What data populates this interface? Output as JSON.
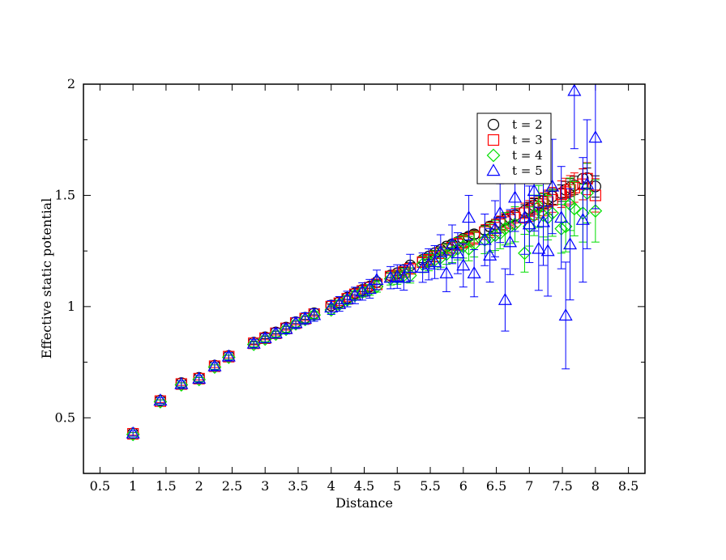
{
  "chart_data": {
    "type": "scatter",
    "title": "",
    "xlabel": "Distance",
    "ylabel": "Effective static potential",
    "xlim": [
      0.25,
      8.75
    ],
    "ylim": [
      0.25,
      2.0
    ],
    "xticks": [
      "0.5",
      "1",
      "1.5",
      "2",
      "2.5",
      "3",
      "3.5",
      "4",
      "4.5",
      "5",
      "5.5",
      "6",
      "6.5",
      "7",
      "7.5",
      "8",
      "8.5"
    ],
    "yticks": [
      "0.5",
      "1",
      "1.5",
      "2"
    ],
    "grid": false,
    "legend_position": "top-right",
    "series": [
      {
        "name": "t = 2",
        "color": "#000000",
        "marker": "circle",
        "points": [
          [
            1.0,
            0.43,
            0.005
          ],
          [
            1.414,
            0.578,
            0.005
          ],
          [
            1.732,
            0.656,
            0.005
          ],
          [
            2.0,
            0.68,
            0.005
          ],
          [
            2.236,
            0.735,
            0.005
          ],
          [
            2.449,
            0.778,
            0.005
          ],
          [
            2.828,
            0.838,
            0.006
          ],
          [
            3.0,
            0.862,
            0.006
          ],
          [
            3.162,
            0.884,
            0.006
          ],
          [
            3.317,
            0.906,
            0.006
          ],
          [
            3.464,
            0.93,
            0.006
          ],
          [
            3.606,
            0.95,
            0.007
          ],
          [
            3.742,
            0.97,
            0.007
          ],
          [
            4.0,
            1.005,
            0.007
          ],
          [
            4.123,
            1.02,
            0.007
          ],
          [
            4.243,
            1.04,
            0.008
          ],
          [
            4.359,
            1.06,
            0.008
          ],
          [
            4.472,
            1.075,
            0.008
          ],
          [
            4.583,
            1.09,
            0.008
          ],
          [
            4.69,
            1.11,
            0.009
          ],
          [
            4.899,
            1.14,
            0.01
          ],
          [
            5.0,
            1.15,
            0.01
          ],
          [
            5.099,
            1.165,
            0.011
          ],
          [
            5.196,
            1.185,
            0.012
          ],
          [
            5.385,
            1.21,
            0.012
          ],
          [
            5.477,
            1.225,
            0.013
          ],
          [
            5.568,
            1.24,
            0.013
          ],
          [
            5.657,
            1.255,
            0.014
          ],
          [
            5.745,
            1.27,
            0.015
          ],
          [
            5.831,
            1.28,
            0.015
          ],
          [
            5.916,
            1.29,
            0.016
          ],
          [
            6.0,
            1.305,
            0.017
          ],
          [
            6.083,
            1.315,
            0.018
          ],
          [
            6.164,
            1.325,
            0.019
          ],
          [
            6.325,
            1.345,
            0.02
          ],
          [
            6.403,
            1.36,
            0.021
          ],
          [
            6.481,
            1.37,
            0.022
          ],
          [
            6.557,
            1.38,
            0.023
          ],
          [
            6.633,
            1.39,
            0.024
          ],
          [
            6.708,
            1.4,
            0.025
          ],
          [
            6.782,
            1.41,
            0.026
          ],
          [
            6.928,
            1.43,
            0.028
          ],
          [
            7.0,
            1.44,
            0.029
          ],
          [
            7.071,
            1.455,
            0.03
          ],
          [
            7.141,
            1.465,
            0.032
          ],
          [
            7.211,
            1.475,
            0.033
          ],
          [
            7.28,
            1.485,
            0.034
          ],
          [
            7.348,
            1.495,
            0.035
          ],
          [
            7.483,
            1.51,
            0.037
          ],
          [
            7.55,
            1.525,
            0.038
          ],
          [
            7.616,
            1.535,
            0.04
          ],
          [
            7.681,
            1.545,
            0.041
          ],
          [
            7.81,
            1.575,
            0.044
          ],
          [
            7.874,
            1.578,
            0.045
          ],
          [
            8.0,
            1.54,
            0.048
          ]
        ]
      },
      {
        "name": "t = 3",
        "color": "#ff0000",
        "marker": "square",
        "points": [
          [
            1.0,
            0.428,
            0.006
          ],
          [
            1.414,
            0.575,
            0.006
          ],
          [
            1.732,
            0.652,
            0.006
          ],
          [
            2.0,
            0.676,
            0.006
          ],
          [
            2.236,
            0.732,
            0.006
          ],
          [
            2.449,
            0.775,
            0.006
          ],
          [
            2.828,
            0.835,
            0.007
          ],
          [
            3.0,
            0.858,
            0.007
          ],
          [
            3.162,
            0.88,
            0.008
          ],
          [
            3.317,
            0.902,
            0.008
          ],
          [
            3.464,
            0.926,
            0.008
          ],
          [
            3.606,
            0.946,
            0.009
          ],
          [
            3.742,
            0.966,
            0.009
          ],
          [
            4.0,
            1.0,
            0.01
          ],
          [
            4.123,
            1.015,
            0.01
          ],
          [
            4.243,
            1.035,
            0.011
          ],
          [
            4.359,
            1.055,
            0.012
          ],
          [
            4.472,
            1.07,
            0.012
          ],
          [
            4.583,
            1.085,
            0.013
          ],
          [
            4.69,
            1.1,
            0.014
          ],
          [
            4.899,
            1.135,
            0.015
          ],
          [
            5.0,
            1.14,
            0.016
          ],
          [
            5.099,
            1.155,
            0.017
          ],
          [
            5.196,
            1.17,
            0.018
          ],
          [
            5.385,
            1.2,
            0.02
          ],
          [
            5.477,
            1.21,
            0.021
          ],
          [
            5.568,
            1.225,
            0.022
          ],
          [
            5.657,
            1.24,
            0.023
          ],
          [
            5.745,
            1.255,
            0.024
          ],
          [
            5.831,
            1.265,
            0.025
          ],
          [
            5.916,
            1.28,
            0.027
          ],
          [
            6.0,
            1.29,
            0.028
          ],
          [
            6.083,
            1.3,
            0.029
          ],
          [
            6.164,
            1.31,
            0.03
          ],
          [
            6.325,
            1.335,
            0.033
          ],
          [
            6.403,
            1.345,
            0.034
          ],
          [
            6.481,
            1.355,
            0.036
          ],
          [
            6.557,
            1.37,
            0.037
          ],
          [
            6.633,
            1.38,
            0.038
          ],
          [
            6.708,
            1.39,
            0.04
          ],
          [
            6.782,
            1.4,
            0.042
          ],
          [
            6.928,
            1.42,
            0.045
          ],
          [
            7.0,
            1.43,
            0.047
          ],
          [
            7.071,
            1.44,
            0.049
          ],
          [
            7.141,
            1.45,
            0.05
          ],
          [
            7.211,
            1.46,
            0.052
          ],
          [
            7.28,
            1.47,
            0.054
          ],
          [
            7.348,
            1.48,
            0.056
          ],
          [
            7.483,
            1.505,
            0.06
          ],
          [
            7.55,
            1.515,
            0.062
          ],
          [
            7.616,
            1.525,
            0.064
          ],
          [
            7.681,
            1.535,
            0.066
          ],
          [
            7.81,
            1.55,
            0.07
          ],
          [
            7.874,
            1.575,
            0.072
          ],
          [
            8.0,
            1.5,
            0.075
          ]
        ]
      },
      {
        "name": "t = 4",
        "color": "#00dd00",
        "marker": "diamond",
        "points": [
          [
            1.0,
            0.425,
            0.008
          ],
          [
            1.414,
            0.572,
            0.008
          ],
          [
            1.732,
            0.648,
            0.009
          ],
          [
            2.0,
            0.672,
            0.009
          ],
          [
            2.236,
            0.728,
            0.01
          ],
          [
            2.449,
            0.772,
            0.01
          ],
          [
            2.828,
            0.83,
            0.011
          ],
          [
            3.0,
            0.854,
            0.012
          ],
          [
            3.162,
            0.876,
            0.012
          ],
          [
            3.317,
            0.898,
            0.013
          ],
          [
            3.464,
            0.922,
            0.014
          ],
          [
            3.606,
            0.942,
            0.015
          ],
          [
            3.742,
            0.962,
            0.016
          ],
          [
            4.0,
            0.985,
            0.018
          ],
          [
            4.123,
            1.01,
            0.019
          ],
          [
            4.243,
            1.03,
            0.02
          ],
          [
            4.359,
            1.05,
            0.021
          ],
          [
            4.472,
            1.065,
            0.022
          ],
          [
            4.583,
            1.075,
            0.024
          ],
          [
            4.69,
            1.09,
            0.025
          ],
          [
            4.899,
            1.125,
            0.028
          ],
          [
            5.0,
            1.13,
            0.03
          ],
          [
            5.099,
            1.14,
            0.032
          ],
          [
            5.196,
            1.14,
            0.034
          ],
          [
            5.385,
            1.19,
            0.037
          ],
          [
            5.477,
            1.2,
            0.039
          ],
          [
            5.568,
            1.21,
            0.041
          ],
          [
            5.657,
            1.22,
            0.043
          ],
          [
            5.745,
            1.235,
            0.045
          ],
          [
            5.831,
            1.245,
            0.047
          ],
          [
            5.916,
            1.26,
            0.05
          ],
          [
            6.0,
            1.27,
            0.052
          ],
          [
            6.083,
            1.26,
            0.054
          ],
          [
            6.164,
            1.28,
            0.057
          ],
          [
            6.325,
            1.3,
            0.062
          ],
          [
            6.403,
            1.31,
            0.065
          ],
          [
            6.481,
            1.32,
            0.068
          ],
          [
            6.557,
            1.33,
            0.07
          ],
          [
            6.633,
            1.35,
            0.073
          ],
          [
            6.708,
            1.36,
            0.076
          ],
          [
            6.782,
            1.37,
            0.079
          ],
          [
            6.928,
            1.24,
            0.085
          ],
          [
            7.0,
            1.36,
            0.088
          ],
          [
            7.071,
            1.41,
            0.091
          ],
          [
            7.141,
            1.45,
            0.094
          ],
          [
            7.211,
            1.41,
            0.097
          ],
          [
            7.28,
            1.4,
            0.1
          ],
          [
            7.348,
            1.42,
            0.104
          ],
          [
            7.483,
            1.35,
            0.11
          ],
          [
            7.55,
            1.36,
            0.114
          ],
          [
            7.616,
            1.46,
            0.118
          ],
          [
            7.681,
            1.44,
            0.122
          ],
          [
            7.81,
            1.42,
            0.13
          ],
          [
            7.874,
            1.51,
            0.134
          ],
          [
            8.0,
            1.43,
            0.14
          ]
        ]
      },
      {
        "name": "t = 5",
        "color": "#0000ff",
        "marker": "triangle",
        "points": [
          [
            1.0,
            0.43,
            0.012
          ],
          [
            1.414,
            0.578,
            0.013
          ],
          [
            1.732,
            0.652,
            0.014
          ],
          [
            2.0,
            0.676,
            0.015
          ],
          [
            2.236,
            0.732,
            0.016
          ],
          [
            2.449,
            0.776,
            0.017
          ],
          [
            2.828,
            0.834,
            0.019
          ],
          [
            3.0,
            0.858,
            0.02
          ],
          [
            3.162,
            0.88,
            0.022
          ],
          [
            3.317,
            0.9,
            0.023
          ],
          [
            3.464,
            0.926,
            0.025
          ],
          [
            3.606,
            0.946,
            0.026
          ],
          [
            3.742,
            0.962,
            0.028
          ],
          [
            4.0,
            0.996,
            0.031
          ],
          [
            4.123,
            1.012,
            0.033
          ],
          [
            4.243,
            1.034,
            0.035
          ],
          [
            4.359,
            1.05,
            0.037
          ],
          [
            4.472,
            1.068,
            0.039
          ],
          [
            4.583,
            1.08,
            0.042
          ],
          [
            4.69,
            1.12,
            0.044
          ],
          [
            4.899,
            1.13,
            0.05
          ],
          [
            5.0,
            1.135,
            0.053
          ],
          [
            5.099,
            1.13,
            0.056
          ],
          [
            5.196,
            1.175,
            0.06
          ],
          [
            5.385,
            1.175,
            0.066
          ],
          [
            5.477,
            1.19,
            0.07
          ],
          [
            5.568,
            1.2,
            0.074
          ],
          [
            5.657,
            1.245,
            0.078
          ],
          [
            5.745,
            1.15,
            0.083
          ],
          [
            5.831,
            1.28,
            0.087
          ],
          [
            5.916,
            1.24,
            0.092
          ],
          [
            6.0,
            1.185,
            0.097
          ],
          [
            6.083,
            1.4,
            0.1
          ],
          [
            6.164,
            1.15,
            0.106
          ],
          [
            6.325,
            1.3,
            0.116
          ],
          [
            6.403,
            1.23,
            0.12
          ],
          [
            6.481,
            1.35,
            0.126
          ],
          [
            6.557,
            1.42,
            0.132
          ],
          [
            6.633,
            1.03,
            0.14
          ],
          [
            6.708,
            1.29,
            0.146
          ],
          [
            6.782,
            1.49,
            0.152
          ],
          [
            6.928,
            1.4,
            0.165
          ],
          [
            7.0,
            1.37,
            0.172
          ],
          [
            7.071,
            1.52,
            0.18
          ],
          [
            7.141,
            1.26,
            0.187
          ],
          [
            7.211,
            1.38,
            0.195
          ],
          [
            7.28,
            1.25,
            0.203
          ],
          [
            7.348,
            1.54,
            0.212
          ],
          [
            7.483,
            1.4,
            0.23
          ],
          [
            7.55,
            0.96,
            0.24
          ],
          [
            7.616,
            1.28,
            0.25
          ],
          [
            7.681,
            1.97,
            0.26
          ],
          [
            7.81,
            1.39,
            0.28
          ],
          [
            7.874,
            1.55,
            0.29
          ],
          [
            8.0,
            1.76,
            0.32
          ]
        ]
      }
    ]
  }
}
